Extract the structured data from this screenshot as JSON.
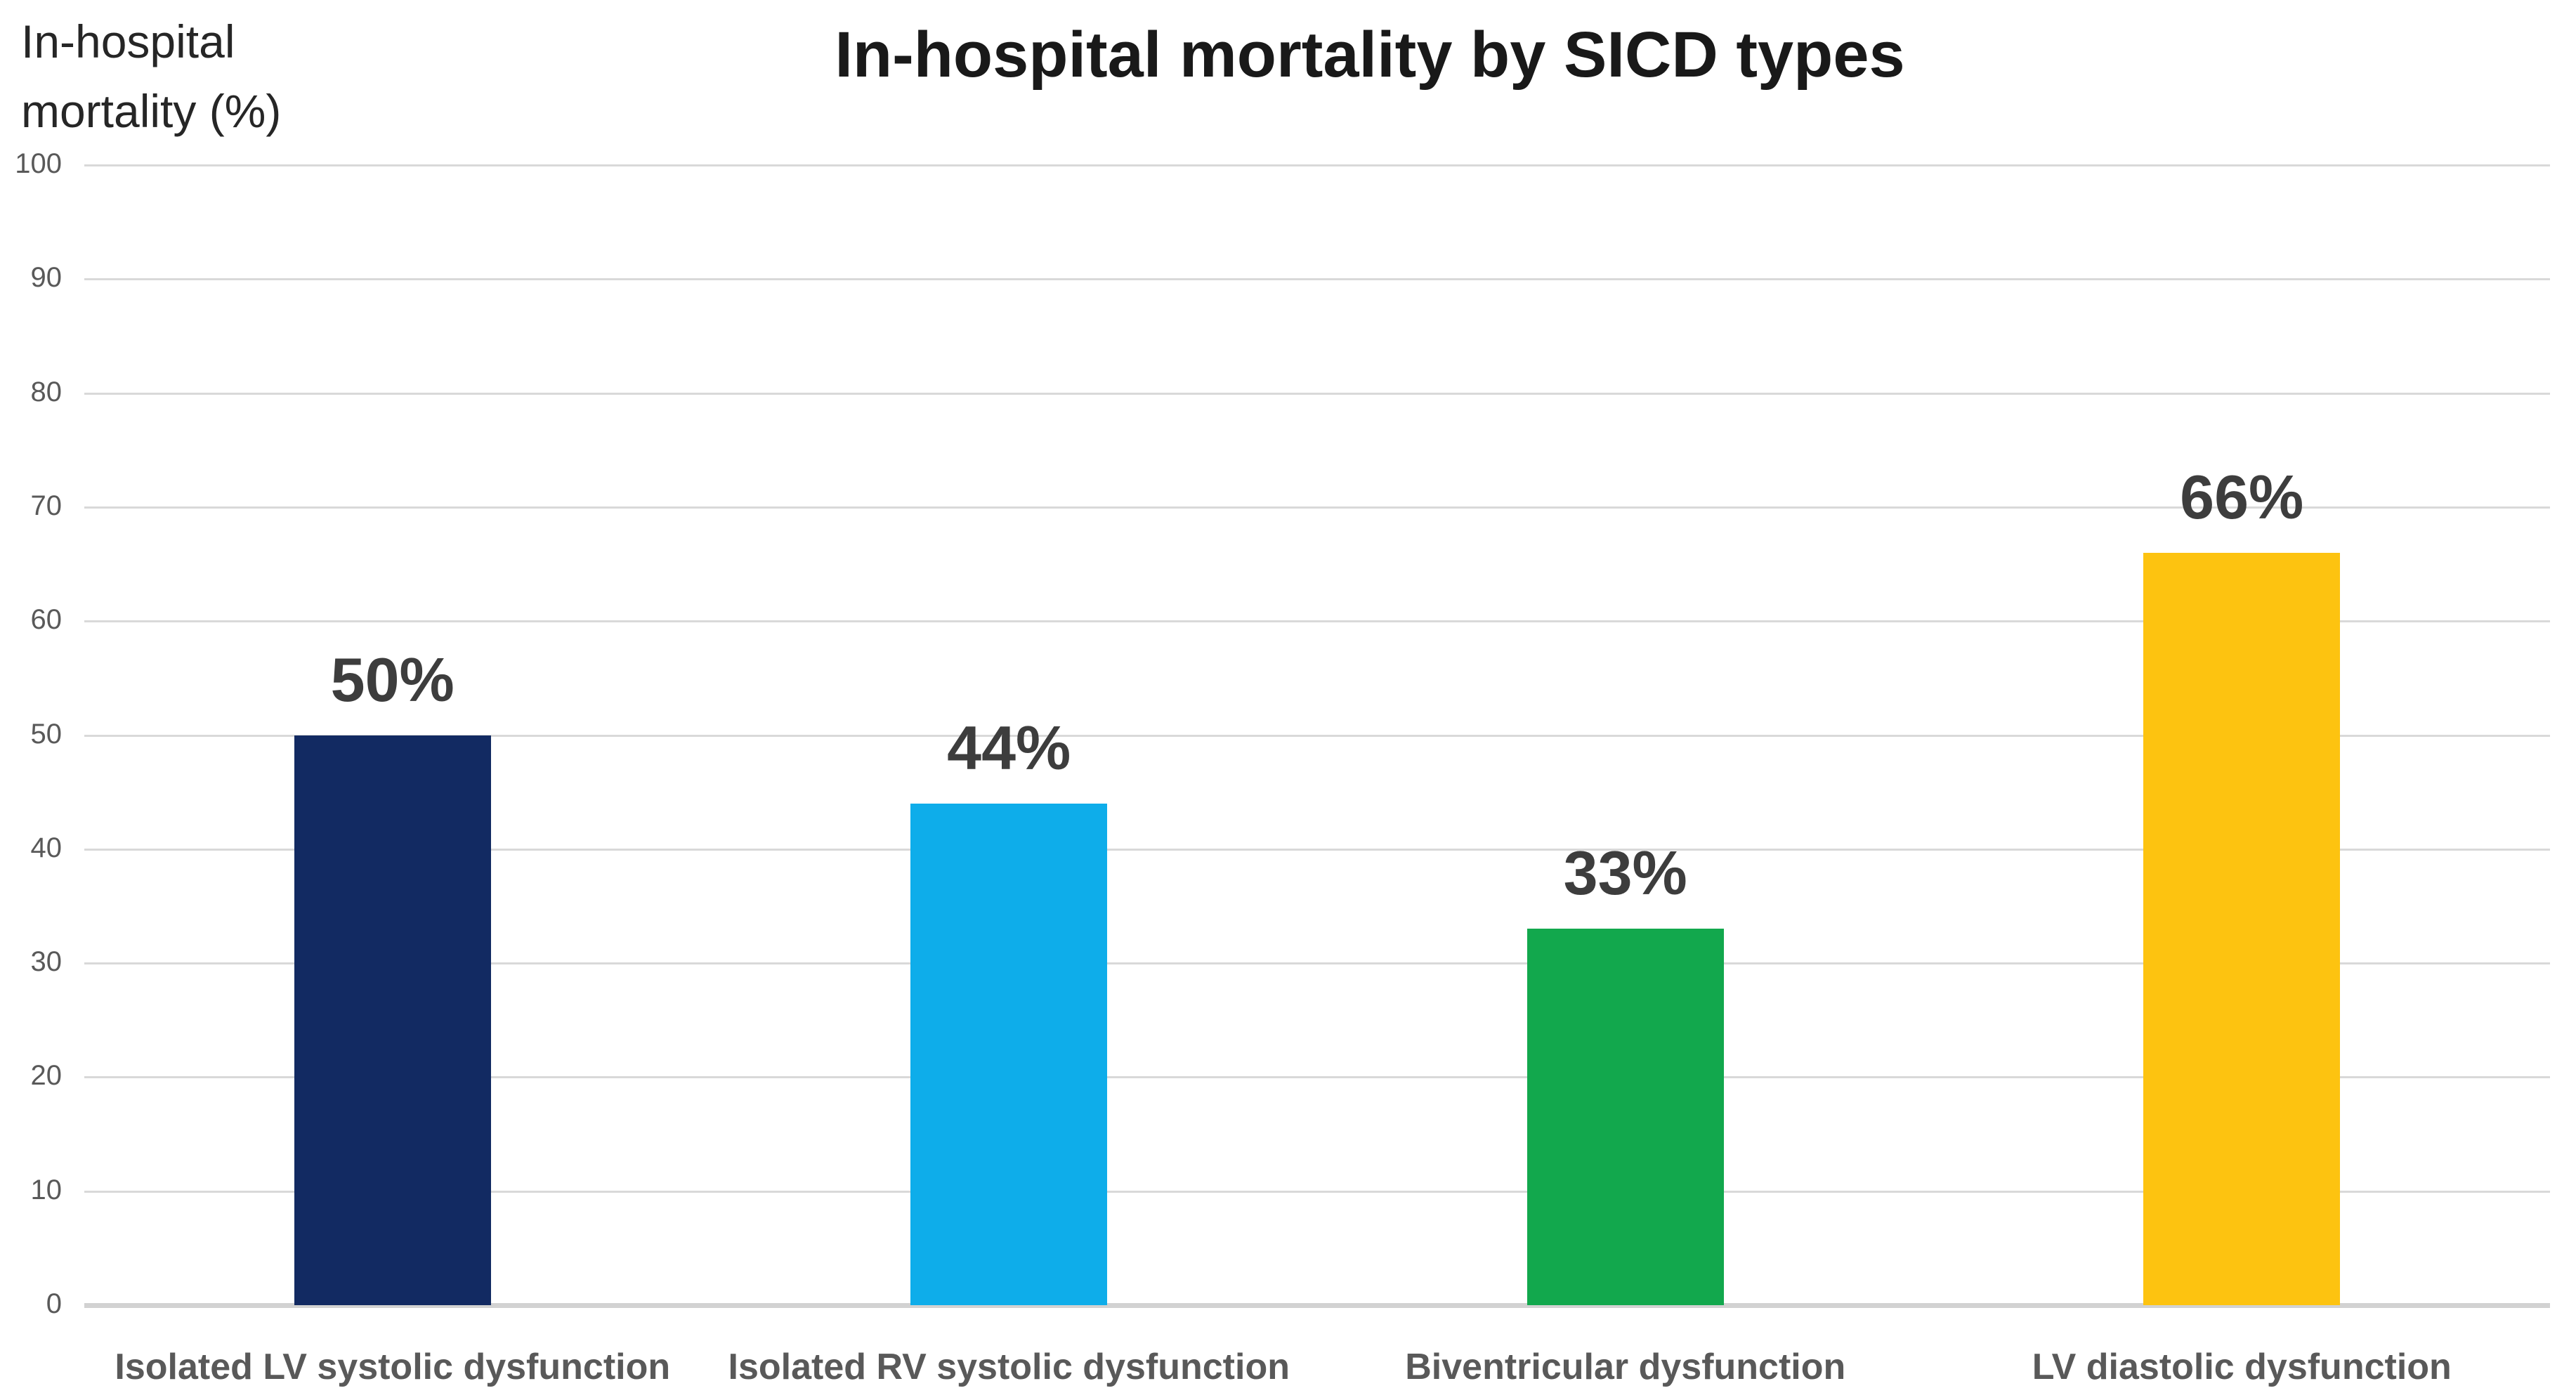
{
  "chart_data": {
    "type": "bar",
    "title": "In-hospital mortality by SICD types",
    "ylabel_lines": [
      "In-hospital",
      "mortality (%)"
    ],
    "categories": [
      "Isolated LV systolic dysfunction",
      "Isolated RV systolic dysfunction",
      "Biventricular dysfunction",
      "LV diastolic dysfunction"
    ],
    "values": [
      50,
      44,
      33,
      66
    ],
    "value_labels": [
      "50%",
      "44%",
      "33%",
      "66%"
    ],
    "bar_colors": [
      "#122a62",
      "#0eadea",
      "#12a84d",
      "#fdc310"
    ],
    "ylim": [
      0,
      100
    ],
    "ytick_step": 10,
    "ytick_labels": [
      "0",
      "10",
      "20",
      "30",
      "40",
      "50",
      "60",
      "70",
      "80",
      "90",
      "100"
    ],
    "grid": true,
    "legend": null,
    "gridline_color": "#d9d9d9",
    "value_label_color": "#3d3d3d",
    "category_label_color": "#595959",
    "tick_label_color": "#595959",
    "title_color": "#191919"
  }
}
